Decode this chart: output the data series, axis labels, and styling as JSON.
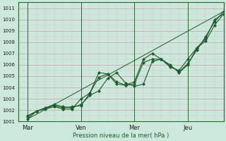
{
  "xlabel": "Pression niveau de la mer( hPa )",
  "background_color": "#cce8dc",
  "line_color": "#1a5c2a",
  "grid_major_color": "#c8a0a0",
  "grid_minor_color": "#ddc0c0",
  "spine_color": "#2a6a2a",
  "ylim": [
    1001,
    1011.5
  ],
  "yticks": [
    1001,
    1002,
    1003,
    1004,
    1005,
    1006,
    1007,
    1008,
    1009,
    1010,
    1011
  ],
  "xticklabels": [
    "Mar",
    "Ven",
    "Mer",
    "Jeu"
  ],
  "xtick_positions": [
    0,
    3,
    6,
    9
  ],
  "xlim": [
    -0.5,
    11.0
  ],
  "vlines": [
    0,
    3,
    6,
    9
  ],
  "series": [
    {
      "x": [
        0,
        0.5,
        1.0,
        1.5,
        2.0,
        2.5,
        3.0,
        3.5,
        4.0,
        4.5,
        5.0,
        5.5,
        6.0,
        6.5,
        7.0,
        7.5,
        8.0,
        8.5,
        9.0,
        9.5,
        10.0,
        10.5,
        11.0
      ],
      "y": [
        1001.5,
        1001.9,
        1002.2,
        1002.5,
        1002.3,
        1002.2,
        1002.5,
        1003.3,
        1003.7,
        1004.8,
        1005.3,
        1004.4,
        1004.1,
        1004.3,
        1006.3,
        1006.5,
        1006.0,
        1005.3,
        1006.0,
        1007.5,
        1008.3,
        1010.0,
        1010.5
      ]
    },
    {
      "x": [
        0,
        0.5,
        1.0,
        1.5,
        2.0,
        2.5,
        3.0,
        3.5,
        4.0,
        4.5,
        5.0,
        5.5,
        6.0,
        6.5,
        7.0,
        7.5,
        8.0,
        8.5,
        9.0,
        9.5,
        10.0,
        10.5,
        11.0
      ],
      "y": [
        1001.4,
        1001.9,
        1002.2,
        1002.4,
        1002.2,
        1002.3,
        1002.4,
        1003.5,
        1004.9,
        1005.2,
        1004.3,
        1004.2,
        1004.3,
        1006.2,
        1006.5,
        1006.5,
        1005.9,
        1005.4,
        1006.1,
        1007.3,
        1008.5,
        1009.8,
        1010.7
      ]
    },
    {
      "x": [
        0,
        0.5,
        1.0,
        1.5,
        2.0,
        2.5,
        3.0,
        3.5,
        4.0,
        4.5,
        5.0,
        5.5,
        6.0,
        6.5,
        7.0,
        7.5,
        8.0,
        8.5,
        9.0,
        9.5,
        10.0,
        10.5,
        11.0
      ],
      "y": [
        1001.2,
        1001.9,
        1002.1,
        1002.3,
        1002.1,
        1002.1,
        1003.0,
        1003.5,
        1005.3,
        1005.2,
        1004.5,
        1004.2,
        1004.5,
        1006.5,
        1007.0,
        1006.5,
        1005.8,
        1005.5,
        1006.5,
        1007.5,
        1008.1,
        1009.5,
        1010.5
      ]
    },
    {
      "x": [
        0,
        11.0
      ],
      "y": [
        1001.2,
        1010.7
      ]
    }
  ]
}
